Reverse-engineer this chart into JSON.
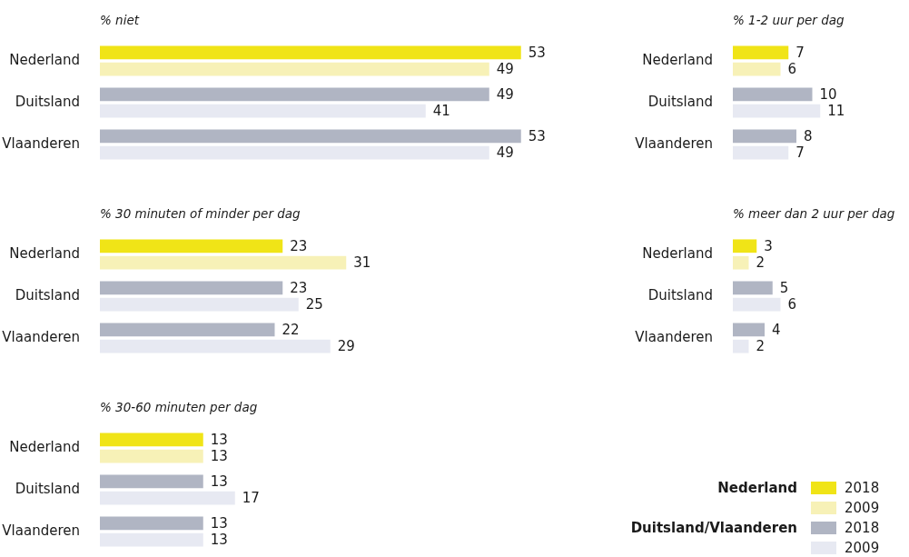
{
  "chart_data": [
    {
      "type": "bar",
      "orientation": "horizontal",
      "title": "% niet",
      "categories": [
        "Nederland",
        "Duitsland",
        "Vlaanderen"
      ],
      "series": [
        {
          "colors": [
            "#f0e417",
            "#b0b5c3",
            "#b0b5c3"
          ],
          "values": [
            53,
            49,
            53
          ]
        },
        {
          "colors": [
            "#f7f1b7",
            "#e7e9f2",
            "#e7e9f2"
          ],
          "values": [
            49,
            41,
            49
          ]
        }
      ],
      "data_labels": true,
      "tick_labels": "y"
    },
    {
      "type": "bar",
      "orientation": "horizontal",
      "title": "% 1-2 uur per dag",
      "categories": [
        "Nederland",
        "Duitsland",
        "Vlaanderen"
      ],
      "series": [
        {
          "colors": [
            "#f0e417",
            "#b0b5c3",
            "#b0b5c3"
          ],
          "values": [
            7,
            10,
            8
          ]
        },
        {
          "colors": [
            "#f7f1b7",
            "#e7e9f2",
            "#e7e9f2"
          ],
          "values": [
            6,
            11,
            7
          ]
        }
      ],
      "data_labels": true,
      "tick_labels": "y"
    },
    {
      "type": "bar",
      "orientation": "horizontal",
      "title": "% 30 minuten of minder per dag",
      "categories": [
        "Nederland",
        "Duitsland",
        "Vlaanderen"
      ],
      "series": [
        {
          "colors": [
            "#f0e417",
            "#b0b5c3",
            "#b0b5c3"
          ],
          "values": [
            23,
            23,
            22
          ]
        },
        {
          "colors": [
            "#f7f1b7",
            "#e7e9f2",
            "#e7e9f2"
          ],
          "values": [
            31,
            25,
            29
          ]
        }
      ],
      "data_labels": true,
      "tick_labels": "y"
    },
    {
      "type": "bar",
      "orientation": "horizontal",
      "title": "% meer dan 2 uur per dag",
      "categories": [
        "Nederland",
        "Duitsland",
        "Vlaanderen"
      ],
      "series": [
        {
          "colors": [
            "#f0e417",
            "#b0b5c3",
            "#b0b5c3"
          ],
          "values": [
            3,
            5,
            4
          ]
        },
        {
          "colors": [
            "#f7f1b7",
            "#e7e9f2",
            "#e7e9f2"
          ],
          "values": [
            2,
            6,
            2
          ]
        }
      ],
      "data_labels": true,
      "tick_labels": "y"
    },
    {
      "type": "bar",
      "orientation": "horizontal",
      "title": "% 30-60 minuten per dag",
      "categories": [
        "Nederland",
        "Duitsland",
        "Vlaanderen"
      ],
      "series": [
        {
          "name": "2018",
          "colors": [
            "#f0e417",
            "#b0b5c3",
            "#b0b5c3"
          ],
          "values": [
            13,
            13,
            13
          ]
        },
        {
          "name": "2009",
          "colors": [
            "#f7f1b7",
            "#e7e9f2",
            "#e7e9f2"
          ],
          "values": [
            13,
            17,
            13
          ]
        }
      ],
      "data_labels": true,
      "tick_labels": "y",
      "legend": "right",
      "annotations": [
        "Nederland",
        "Duitsland/Vlaanderen"
      ]
    }
  ]
}
